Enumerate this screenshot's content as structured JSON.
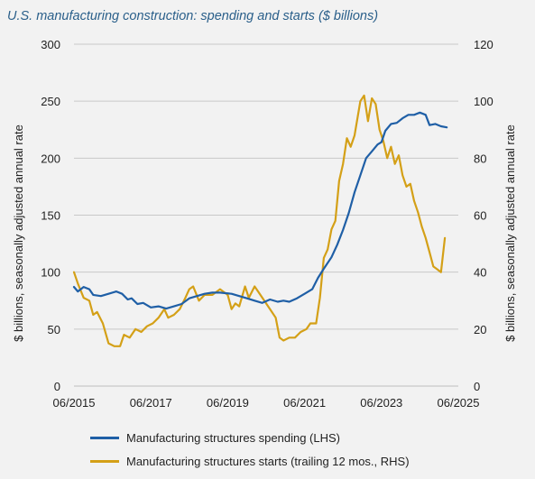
{
  "chart_data": {
    "type": "line",
    "title": "U.S. manufacturing construction: spending and starts ($ billions)",
    "ylabel_left": "$ billions, seasonally adjusted annual rate",
    "ylabel_right": "$ billions, seasonally adjusted annual rate",
    "ylim_left": [
      0,
      300
    ],
    "yticks_left": [
      "0",
      "50",
      "100",
      "150",
      "200",
      "250",
      "300"
    ],
    "ylim_right": [
      0,
      120
    ],
    "yticks_right": [
      "0",
      "20",
      "40",
      "60",
      "80",
      "100",
      "120"
    ],
    "xlim": [
      2015.5,
      2025.5
    ],
    "xticks": [
      {
        "x": 2015.5,
        "label": "06/2015"
      },
      {
        "x": 2017.5,
        "label": "06/2017"
      },
      {
        "x": 2019.5,
        "label": "06/2019"
      },
      {
        "x": 2021.5,
        "label": "06/2021"
      },
      {
        "x": 2023.5,
        "label": "06/2023"
      },
      {
        "x": 2025.5,
        "label": "06/2025"
      }
    ],
    "grid": "horizontal",
    "legend": "bottom",
    "series": [
      {
        "name": "Manufacturing structures spending (LHS)",
        "axis": "left",
        "color": "#1f5fa6",
        "points": [
          [
            2015.5,
            87
          ],
          [
            2015.6,
            83
          ],
          [
            2015.75,
            87
          ],
          [
            2015.9,
            85
          ],
          [
            2016.0,
            80
          ],
          [
            2016.2,
            79
          ],
          [
            2016.4,
            81
          ],
          [
            2016.6,
            83
          ],
          [
            2016.75,
            81
          ],
          [
            2016.9,
            76
          ],
          [
            2017.0,
            77
          ],
          [
            2017.15,
            72
          ],
          [
            2017.3,
            73
          ],
          [
            2017.5,
            69
          ],
          [
            2017.7,
            70
          ],
          [
            2017.9,
            68
          ],
          [
            2018.1,
            70
          ],
          [
            2018.3,
            72
          ],
          [
            2018.5,
            77
          ],
          [
            2018.7,
            79
          ],
          [
            2018.9,
            81
          ],
          [
            2019.1,
            82
          ],
          [
            2019.3,
            82
          ],
          [
            2019.6,
            81
          ],
          [
            2019.8,
            79
          ],
          [
            2020.0,
            77
          ],
          [
            2020.2,
            75
          ],
          [
            2020.4,
            73
          ],
          [
            2020.6,
            76
          ],
          [
            2020.8,
            74
          ],
          [
            2020.95,
            75
          ],
          [
            2021.1,
            74
          ],
          [
            2021.3,
            77
          ],
          [
            2021.5,
            81
          ],
          [
            2021.7,
            85
          ],
          [
            2021.85,
            95
          ],
          [
            2022.0,
            103
          ],
          [
            2022.2,
            113
          ],
          [
            2022.35,
            124
          ],
          [
            2022.5,
            137
          ],
          [
            2022.65,
            152
          ],
          [
            2022.8,
            170
          ],
          [
            2022.95,
            185
          ],
          [
            2023.1,
            200
          ],
          [
            2023.25,
            206
          ],
          [
            2023.4,
            212
          ],
          [
            2023.5,
            214
          ],
          [
            2023.6,
            224
          ],
          [
            2023.75,
            230
          ],
          [
            2023.9,
            231
          ],
          [
            2024.05,
            235
          ],
          [
            2024.2,
            238
          ],
          [
            2024.35,
            238
          ],
          [
            2024.5,
            240
          ],
          [
            2024.65,
            238
          ],
          [
            2024.75,
            229
          ],
          [
            2024.9,
            230
          ],
          [
            2025.05,
            228
          ],
          [
            2025.2,
            227
          ]
        ]
      },
      {
        "name": "Manufacturing structures starts (trailing 12 mos., RHS)",
        "axis": "right",
        "color": "#d4a017",
        "points": [
          [
            2015.5,
            40
          ],
          [
            2015.6,
            36
          ],
          [
            2015.75,
            31
          ],
          [
            2015.9,
            30
          ],
          [
            2016.0,
            25
          ],
          [
            2016.1,
            26
          ],
          [
            2016.25,
            22
          ],
          [
            2016.4,
            15
          ],
          [
            2016.55,
            14
          ],
          [
            2016.7,
            14
          ],
          [
            2016.8,
            18
          ],
          [
            2016.95,
            17
          ],
          [
            2017.1,
            20
          ],
          [
            2017.25,
            19
          ],
          [
            2017.4,
            21
          ],
          [
            2017.55,
            22
          ],
          [
            2017.7,
            24
          ],
          [
            2017.85,
            27
          ],
          [
            2017.95,
            24
          ],
          [
            2018.1,
            25
          ],
          [
            2018.25,
            27
          ],
          [
            2018.4,
            31
          ],
          [
            2018.5,
            34
          ],
          [
            2018.6,
            35
          ],
          [
            2018.75,
            30
          ],
          [
            2018.9,
            32
          ],
          [
            2019.1,
            32
          ],
          [
            2019.3,
            34
          ],
          [
            2019.5,
            32
          ],
          [
            2019.6,
            27
          ],
          [
            2019.7,
            29
          ],
          [
            2019.8,
            28
          ],
          [
            2019.95,
            35
          ],
          [
            2020.05,
            31
          ],
          [
            2020.2,
            35
          ],
          [
            2020.3,
            33
          ],
          [
            2020.45,
            30
          ],
          [
            2020.6,
            27
          ],
          [
            2020.75,
            24
          ],
          [
            2020.85,
            17
          ],
          [
            2020.95,
            16
          ],
          [
            2021.1,
            17
          ],
          [
            2021.25,
            17
          ],
          [
            2021.4,
            19
          ],
          [
            2021.55,
            20
          ],
          [
            2021.65,
            22
          ],
          [
            2021.8,
            22
          ],
          [
            2021.9,
            31
          ],
          [
            2022.0,
            45
          ],
          [
            2022.1,
            48
          ],
          [
            2022.2,
            55
          ],
          [
            2022.3,
            58
          ],
          [
            2022.4,
            72
          ],
          [
            2022.5,
            78
          ],
          [
            2022.6,
            87
          ],
          [
            2022.7,
            84
          ],
          [
            2022.8,
            88
          ],
          [
            2022.95,
            100
          ],
          [
            2023.05,
            102
          ],
          [
            2023.15,
            93
          ],
          [
            2023.25,
            101
          ],
          [
            2023.35,
            99
          ],
          [
            2023.45,
            90
          ],
          [
            2023.55,
            86
          ],
          [
            2023.65,
            80
          ],
          [
            2023.75,
            84
          ],
          [
            2023.85,
            78
          ],
          [
            2023.95,
            81
          ],
          [
            2024.05,
            74
          ],
          [
            2024.15,
            70
          ],
          [
            2024.25,
            71
          ],
          [
            2024.35,
            65
          ],
          [
            2024.45,
            61
          ],
          [
            2024.55,
            56
          ],
          [
            2024.65,
            52
          ],
          [
            2024.75,
            47
          ],
          [
            2024.85,
            42
          ],
          [
            2024.95,
            41
          ],
          [
            2025.05,
            40
          ],
          [
            2025.15,
            52
          ]
        ]
      }
    ]
  }
}
